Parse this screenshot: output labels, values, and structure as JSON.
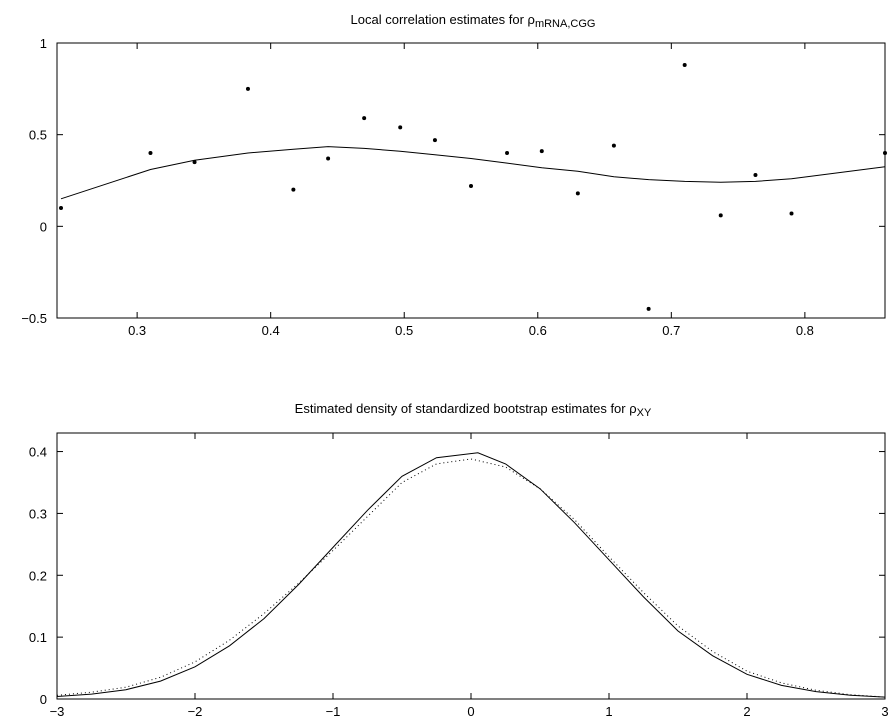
{
  "chart_data": [
    {
      "type": "scatter",
      "title": "Local correlation estimates for ρ",
      "title_symbol": "ρ",
      "title_subscript": "mRNA,CGG",
      "xlim": [
        0.24,
        0.86
      ],
      "ylim": [
        -0.5,
        1
      ],
      "xticks": [
        0.3,
        0.4,
        0.5,
        0.6,
        0.7,
        0.8
      ],
      "xtick_labels": [
        "0.3",
        "0.4",
        "0.5",
        "0.6",
        "0.7",
        "0.8"
      ],
      "yticks": [
        -0.5,
        0,
        0.5,
        1
      ],
      "ytick_labels": [
        "−0.5",
        "0",
        "0.5",
        "1"
      ],
      "grid": false,
      "series": [
        {
          "style": "points",
          "x": [
            0.243,
            0.31,
            0.343,
            0.383,
            0.417,
            0.443,
            0.47,
            0.497,
            0.523,
            0.55,
            0.577,
            0.603,
            0.63,
            0.657,
            0.683,
            0.71,
            0.737,
            0.763,
            0.79,
            0.86
          ],
          "y": [
            0.1,
            0.4,
            0.35,
            0.75,
            0.2,
            0.37,
            0.59,
            0.54,
            0.47,
            0.22,
            0.4,
            0.41,
            0.18,
            0.44,
            -0.45,
            0.88,
            0.06,
            0.28,
            0.07,
            0.4
          ]
        },
        {
          "style": "solid-line",
          "x": [
            0.243,
            0.31,
            0.343,
            0.383,
            0.417,
            0.443,
            0.47,
            0.497,
            0.523,
            0.55,
            0.577,
            0.603,
            0.63,
            0.657,
            0.683,
            0.71,
            0.737,
            0.763,
            0.79,
            0.86
          ],
          "y": [
            0.15,
            0.31,
            0.36,
            0.4,
            0.42,
            0.435,
            0.425,
            0.41,
            0.39,
            0.37,
            0.345,
            0.32,
            0.3,
            0.27,
            0.255,
            0.245,
            0.24,
            0.245,
            0.26,
            0.325
          ]
        }
      ]
    },
    {
      "type": "line",
      "title": "Estimated density of standardized bootstrap estimates for ρ",
      "title_symbol": "ρ",
      "title_subscript": "XY",
      "xlim": [
        -3,
        3
      ],
      "ylim": [
        0,
        0.43
      ],
      "xticks": [
        -3,
        -2,
        -1,
        0,
        1,
        2,
        3
      ],
      "xtick_labels": [
        "−3",
        "−2",
        "−1",
        "0",
        "1",
        "2",
        "3"
      ],
      "yticks": [
        0,
        0.1,
        0.2,
        0.3,
        0.4
      ],
      "ytick_labels": [
        "0",
        "0.1",
        "0.2",
        "0.3",
        "0.4"
      ],
      "grid": false,
      "series": [
        {
          "style": "solid-line",
          "x": [
            -3,
            -2.75,
            -2.5,
            -2.25,
            -2.0,
            -1.75,
            -1.5,
            -1.25,
            -1.0,
            -0.75,
            -0.5,
            -0.25,
            0.05,
            0.25,
            0.5,
            0.75,
            1.0,
            1.25,
            1.5,
            1.75,
            2.0,
            2.25,
            2.5,
            2.75,
            3.0
          ],
          "y": [
            0.004,
            0.008,
            0.015,
            0.029,
            0.052,
            0.086,
            0.13,
            0.185,
            0.245,
            0.305,
            0.36,
            0.39,
            0.398,
            0.38,
            0.34,
            0.285,
            0.225,
            0.165,
            0.11,
            0.07,
            0.04,
            0.022,
            0.012,
            0.006,
            0.003
          ]
        },
        {
          "style": "dotted-line",
          "x": [
            -3,
            -2.75,
            -2.5,
            -2.25,
            -2.0,
            -1.75,
            -1.5,
            -1.25,
            -1.0,
            -0.75,
            -0.5,
            -0.25,
            0.0,
            0.25,
            0.5,
            0.75,
            1.0,
            1.25,
            1.5,
            1.75,
            2.0,
            2.25,
            2.5,
            2.75,
            3.0
          ],
          "y": [
            0.006,
            0.011,
            0.019,
            0.035,
            0.06,
            0.095,
            0.138,
            0.187,
            0.24,
            0.295,
            0.35,
            0.38,
            0.388,
            0.375,
            0.34,
            0.29,
            0.23,
            0.172,
            0.118,
            0.077,
            0.045,
            0.026,
            0.014,
            0.007,
            0.003
          ]
        }
      ]
    }
  ]
}
